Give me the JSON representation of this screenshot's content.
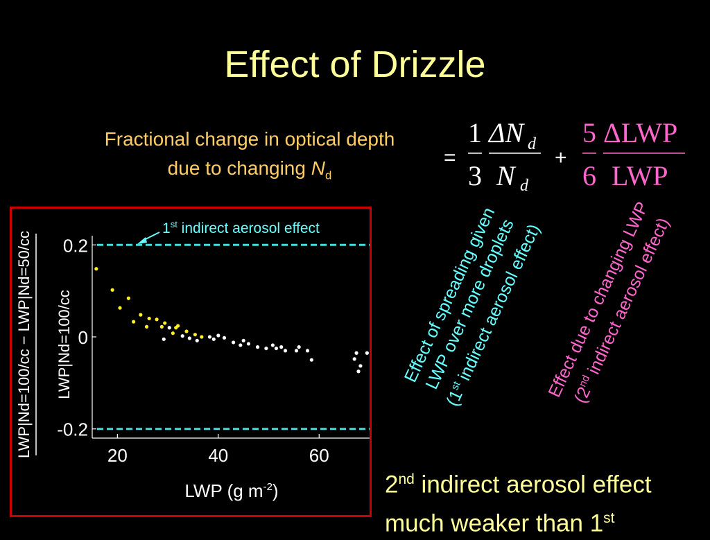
{
  "slide": {
    "title": "Effect of Drizzle",
    "fractional_label_line1": "Fractional change in optical depth",
    "fractional_label_line2_prefix": "due to changing ",
    "fractional_label_symbol": "N",
    "fractional_label_subscript": "d"
  },
  "equation": {
    "equals": "=",
    "plus": "+",
    "term1_num": "1",
    "term1_den": "3",
    "term1_delta_num": "ΔN",
    "term1_delta_den": "N",
    "term1_sub": "d",
    "term2_num": "5",
    "term2_den": "6",
    "term2_delta_num": "ΔLWP",
    "term2_delta_den": "LWP"
  },
  "annotations": {
    "term1_line1": "Effect of spreading given",
    "term1_line2": "LWP over more droplets",
    "term1_line3_pre": "(1",
    "term1_line3_sup": "st",
    "term1_line3_post": " indirect aerosol effect)",
    "term2_line1": "Effect due to changing LWP",
    "term2_line2_pre": "(2",
    "term2_line2_sup": "nd",
    "term2_line2_post": " indirect aerosol effect)",
    "bottom_line1_pre": "2",
    "bottom_line1_sup": "nd",
    "bottom_line1_post": " indirect aerosol effect",
    "bottom_line2_pre": "much weaker than 1",
    "bottom_line2_sup": "st"
  },
  "chart_data": {
    "type": "scatter",
    "xlabel_pre": "LWP (g m",
    "xlabel_sup": "-2",
    "xlabel_post": ")",
    "ylabel_num": "LWP|Nd=100/cc − LWP|Nd=50/cc",
    "ylabel_den": "LWP|Nd=100/cc",
    "xlim": [
      15,
      70
    ],
    "ylim": [
      -0.22,
      0.22
    ],
    "x_ticks": [
      20,
      40,
      60
    ],
    "y_ticks": [
      -0.2,
      0,
      0.2
    ],
    "x_tick_labels": [
      "20",
      "40",
      "60"
    ],
    "y_tick_labels": [
      "-0.2",
      "0",
      "0.2"
    ],
    "reference_lines": [
      0.2,
      -0.2
    ],
    "reference_label_pre": "1",
    "reference_label_sup": "st",
    "reference_label_post": " indirect aerosol effect",
    "colors": {
      "yellow": "#ffee22",
      "white": "#ffffff",
      "reference": "#44dddd",
      "frame": "#cc0000"
    },
    "series": [
      {
        "color": "#ffee22",
        "x": [
          15.8,
          19.0,
          20.5,
          22.2,
          23.2,
          24.6,
          25.8,
          26.3,
          27.8,
          28.8,
          29.4,
          31.0,
          31.6,
          32.0,
          33.7,
          35.4,
          36.7
        ],
        "y": [
          0.148,
          0.102,
          0.063,
          0.084,
          0.033,
          0.048,
          0.022,
          0.04,
          0.038,
          0.022,
          0.03,
          0.008,
          0.02,
          0.024,
          0.012,
          0.005,
          0.0
        ]
      },
      {
        "color": "#ffffff",
        "x": [
          29.2,
          30.3,
          32.9,
          34.3,
          35.8,
          38.3,
          39.1,
          40.0,
          41.2,
          43.0,
          44.4,
          45.0,
          46.0,
          47.8,
          49.5,
          50.8,
          51.5,
          52.5,
          53.3,
          55.5,
          56.0,
          57.7,
          58.5,
          67.0,
          67.4,
          67.8,
          68.2,
          69.5
        ],
        "y": [
          -0.005,
          0.02,
          0.002,
          -0.003,
          -0.008,
          0.0,
          -0.005,
          0.003,
          -0.002,
          -0.012,
          -0.018,
          -0.008,
          -0.015,
          -0.022,
          -0.025,
          -0.018,
          -0.025,
          -0.022,
          -0.03,
          -0.03,
          -0.022,
          -0.03,
          -0.05,
          -0.048,
          -0.035,
          -0.075,
          -0.063,
          -0.035
        ]
      }
    ]
  }
}
